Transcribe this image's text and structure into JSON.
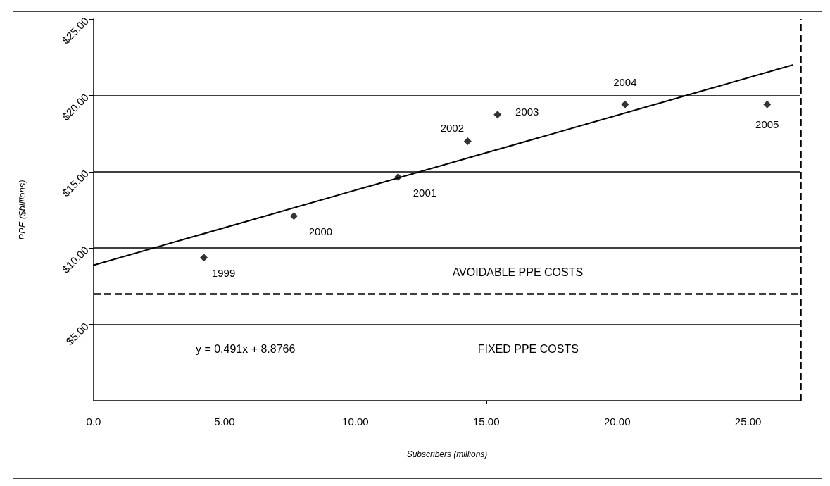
{
  "chart_data": {
    "type": "scatter",
    "xlabel": "Subscribers (millions)",
    "ylabel": "PPE ($billions)",
    "xlim": [
      0,
      27
    ],
    "xticks": [
      {
        "value": 0,
        "label": "0.0"
      },
      {
        "value": 5,
        "label": "5.00"
      },
      {
        "value": 10,
        "label": "10.00"
      },
      {
        "value": 15,
        "label": "15.00"
      },
      {
        "value": 20,
        "label": "20.00"
      },
      {
        "value": 25,
        "label": "25.00"
      }
    ],
    "ylim": [
      0,
      25
    ],
    "yticks": [
      {
        "value": 0,
        "label": null
      },
      {
        "value": 5,
        "label": "$5.00"
      },
      {
        "value": 10,
        "label": "$10.00"
      },
      {
        "value": 15,
        "label": "$15.00"
      },
      {
        "value": 20,
        "label": "$20.00"
      },
      {
        "value": 25,
        "label": "$25.00"
      }
    ],
    "grid": "y",
    "series": [
      {
        "color": "#000000",
        "marker": "diamond",
        "x": [
          4.21,
          7.65,
          11.63,
          14.29,
          15.43,
          20.3,
          25.73
        ],
        "values": [
          9.38,
          12.1,
          14.65,
          17.0,
          18.74,
          19.41,
          19.41
        ]
      },
      {
        "type": "line",
        "color": "#000000",
        "marker": "none",
        "line_style": "solid",
        "x": [
          0,
          26.7
        ],
        "values": [
          8.88,
          21.99
        ]
      }
    ],
    "ref_lines": [
      {
        "axis": "y",
        "value": 7,
        "line_style": "dashed",
        "color": "#000000"
      },
      {
        "axis": "x",
        "value": 27,
        "line_style": "dashed",
        "color": "#000000"
      }
    ],
    "annotations": [
      "AVOIDABLE PPE COSTS",
      "FIXED PPE COSTS",
      "y = 0.491x + 8.8766",
      {
        "text": "1999",
        "x": 4.21,
        "y": 9.38
      },
      {
        "text": "2000",
        "x": 7.65,
        "y": 12.1
      },
      {
        "text": "2001",
        "x": 11.63,
        "y": 14.65
      },
      {
        "text": "2002",
        "x": 14.29,
        "y": 17.0
      },
      {
        "text": "2003",
        "x": 15.43,
        "y": 18.74
      },
      {
        "text": "2004",
        "x": 20.3,
        "y": 19.41
      },
      {
        "text": "2005",
        "x": 25.73,
        "y": 19.41
      }
    ]
  }
}
